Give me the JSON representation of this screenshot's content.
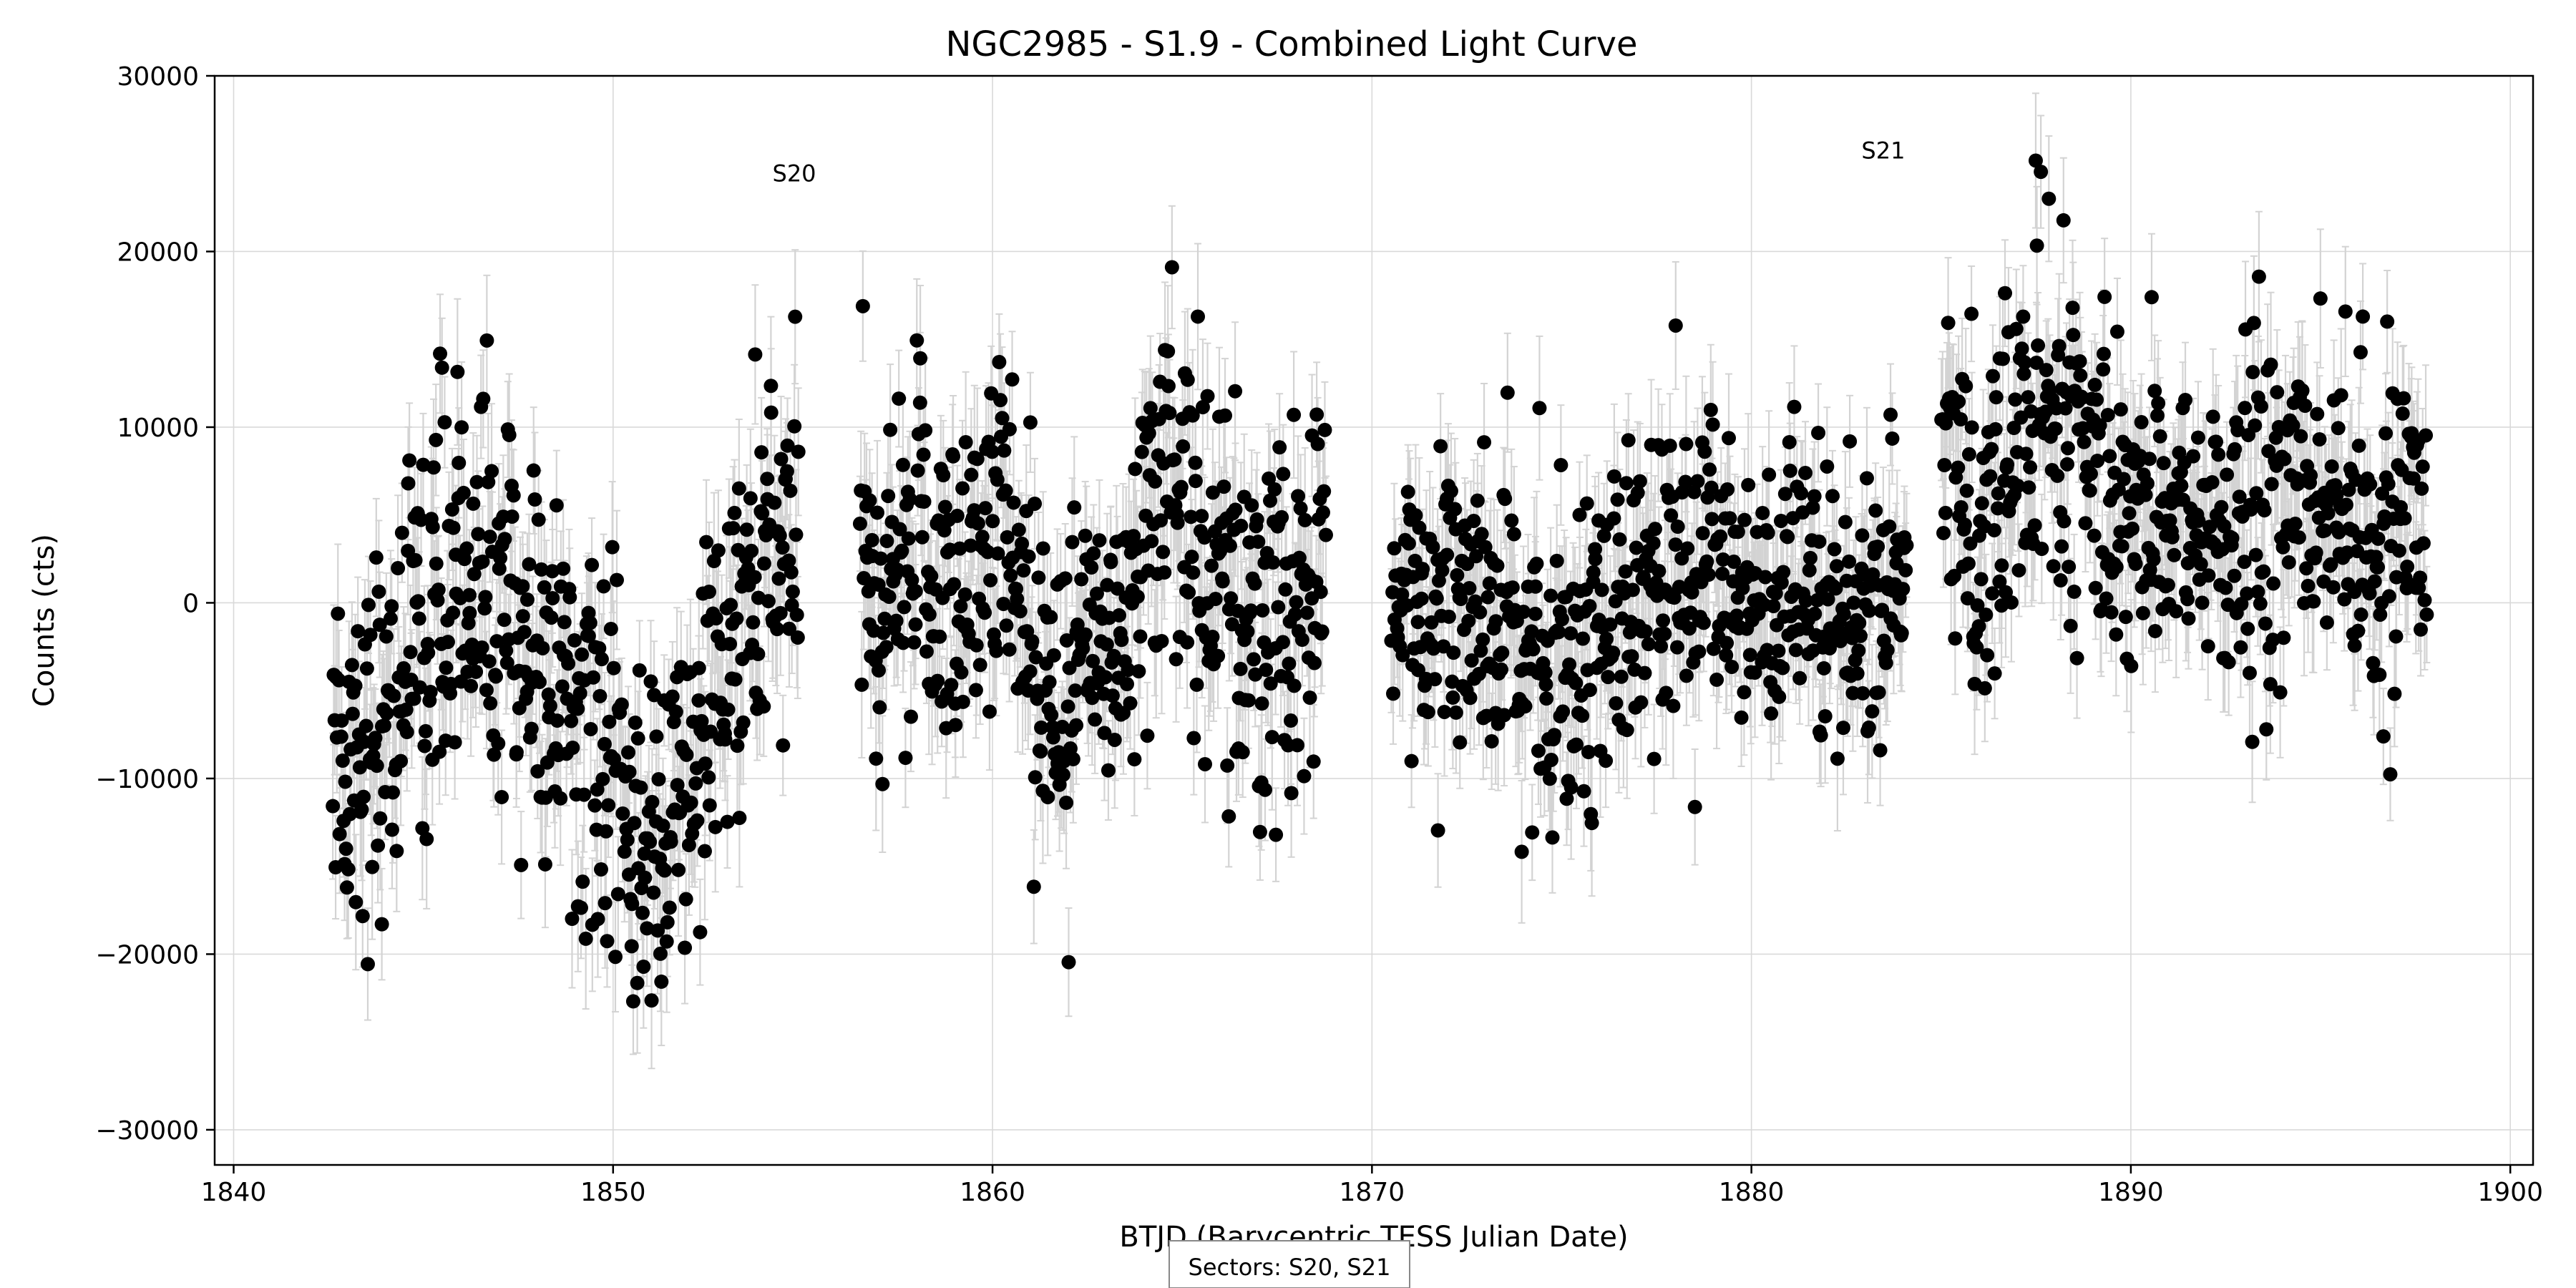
{
  "chart_data": {
    "type": "scatter",
    "title": "NGC2985 - S1.9 - Combined Light Curve",
    "xlabel": "BTJD (Barycentric TESS Julian Date)",
    "ylabel": "Counts (cts)",
    "xlim": [
      1839.5,
      1900.6
    ],
    "ylim": [
      -32000,
      30000
    ],
    "xticks": [
      1840,
      1850,
      1860,
      1870,
      1880,
      1890,
      1900
    ],
    "xtick_labels": [
      "1840",
      "1850",
      "1860",
      "1870",
      "1880",
      "1890",
      "1900"
    ],
    "yticks": [
      -30000,
      -20000,
      -10000,
      0,
      10000,
      20000,
      30000
    ],
    "ytick_labels": [
      "−30000",
      "−20000",
      "−10000",
      "0",
      "10000",
      "20000",
      "30000"
    ],
    "grid": true,
    "annotations": [
      {
        "text": "S20",
        "x": 1854.2,
        "y": 24000
      },
      {
        "text": "S21",
        "x": 1882.9,
        "y": 25300
      }
    ],
    "footnote": "Sectors: S20, S21",
    "colors": {
      "points": "#000000",
      "errorbars": "#d3d3d3",
      "grid": "#d9d9d9"
    },
    "series": [
      {
        "segments": [
          {
            "x": [
              1842.6,
              1843.0,
              1843.5,
              1844.0,
              1844.5,
              1845.0,
              1845.5,
              1846.0,
              1846.5,
              1847.0,
              1847.5,
              1848.0,
              1848.5,
              1849.0,
              1849.5,
              1850.0,
              1850.5,
              1851.0,
              1851.5,
              1852.0,
              1852.5,
              1853.0,
              1853.5,
              1854.0,
              1854.5,
              1854.9
            ],
            "y": [
              -6000,
              -9000,
              -8000,
              -6000,
              -4000,
              -1000,
              1000,
              2000,
              1500,
              0,
              -2000,
              -3000,
              -5000,
              -7000,
              -9000,
              -11000,
              -13000,
              -14000,
              -13000,
              -11000,
              -7000,
              -3000,
              0,
              2000,
              3000,
              2000
            ],
            "spread": 8500
          },
          {
            "x": [
              1856.5,
              1857.0,
              1857.5,
              1858.0,
              1858.5,
              1859.0,
              1859.5,
              1860.0,
              1860.5,
              1861.0,
              1861.5,
              1862.0,
              1862.5,
              1863.0,
              1863.5,
              1864.0,
              1864.5,
              1865.0,
              1865.5,
              1866.0,
              1866.5,
              1867.0,
              1867.5,
              1868.0,
              1868.5,
              1868.8
            ],
            "y": [
              3000,
              -2000,
              1000,
              4000,
              2000,
              0,
              4000,
              5000,
              3000,
              -1000,
              -4000,
              -6000,
              -4000,
              -3000,
              1000,
              5000,
              7000,
              6000,
              4000,
              2000,
              0,
              -2000,
              -1000,
              -2000,
              0,
              1000
            ],
            "spread": 8500
          },
          {
            "x": [
              1870.5,
              1871.0,
              1871.5,
              1872.0,
              1872.5,
              1873.0,
              1873.5,
              1874.0,
              1874.5,
              1875.0,
              1875.5,
              1876.0,
              1876.5,
              1877.0,
              1877.5,
              1878.0,
              1878.5,
              1879.0,
              1879.5,
              1880.0,
              1880.5,
              1881.0,
              1881.5,
              1882.0,
              1882.5,
              1883.0,
              1883.5,
              1884.1
            ],
            "y": [
              -2000,
              0,
              1000,
              2000,
              0,
              -1000,
              -2000,
              -3000,
              -3500,
              -3000,
              -2000,
              -1000,
              -500,
              0,
              500,
              1000,
              2000,
              2500,
              2000,
              1000,
              0,
              -500,
              -1000,
              -1500,
              -1000,
              0,
              1000,
              1500
            ],
            "spread": 7000
          },
          {
            "x": [
              1885.0,
              1885.5,
              1886.0,
              1886.5,
              1887.0,
              1887.5,
              1888.0,
              1888.5,
              1889.0,
              1889.5,
              1890.0,
              1890.5,
              1891.0,
              1891.5,
              1892.0,
              1892.5,
              1893.0,
              1893.5,
              1894.0,
              1894.5,
              1895.0,
              1895.5,
              1896.0,
              1896.5,
              1897.0,
              1897.5,
              1897.8
            ],
            "y": [
              8000,
              6000,
              4000,
              5000,
              9000,
              12000,
              11000,
              9000,
              7000,
              6000,
              5000,
              5500,
              5000,
              4500,
              4000,
              3500,
              4000,
              5000,
              6000,
              6500,
              6000,
              5000,
              3000,
              2000,
              3000,
              4000,
              3500
            ],
            "spread": 7500
          }
        ],
        "density_per_day": 42,
        "error_typical": 3200
      }
    ]
  }
}
